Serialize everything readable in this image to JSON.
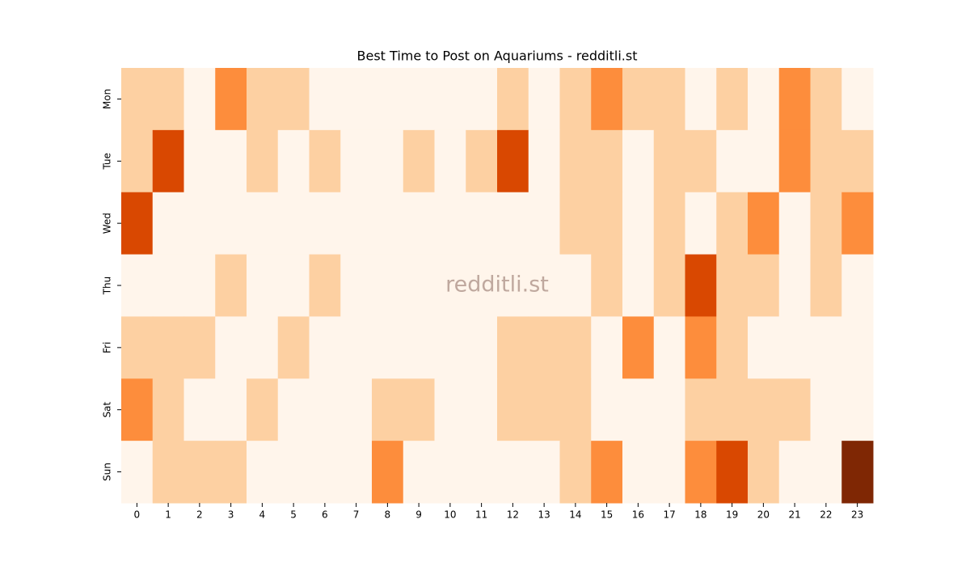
{
  "chart_data": {
    "type": "heatmap",
    "title": "Best Time to Post on Aquariums - redditli.st",
    "watermark": "redditli.st",
    "x": [
      0,
      1,
      2,
      3,
      4,
      5,
      6,
      7,
      8,
      9,
      10,
      11,
      12,
      13,
      14,
      15,
      16,
      17,
      18,
      19,
      20,
      21,
      22,
      23
    ],
    "y": [
      "Mon",
      "Tue",
      "Wed",
      "Thu",
      "Fri",
      "Sat",
      "Sun"
    ],
    "values": [
      [
        1,
        1,
        0,
        2,
        1,
        1,
        0,
        0,
        0,
        0,
        0,
        0,
        1,
        0,
        1,
        2,
        1,
        1,
        0,
        1,
        0,
        2,
        1,
        0
      ],
      [
        1,
        3,
        0,
        0,
        1,
        0,
        1,
        0,
        0,
        1,
        0,
        1,
        3,
        0,
        1,
        1,
        0,
        1,
        1,
        0,
        0,
        2,
        1,
        1
      ],
      [
        3,
        0,
        0,
        0,
        0,
        0,
        0,
        0,
        0,
        0,
        0,
        0,
        0,
        0,
        1,
        1,
        0,
        1,
        0,
        1,
        2,
        0,
        1,
        2
      ],
      [
        0,
        0,
        0,
        1,
        0,
        0,
        1,
        0,
        0,
        0,
        0,
        0,
        0,
        0,
        0,
        1,
        0,
        1,
        3,
        1,
        1,
        0,
        1,
        0
      ],
      [
        1,
        1,
        1,
        0,
        0,
        1,
        0,
        0,
        0,
        0,
        0,
        0,
        1,
        1,
        1,
        0,
        2,
        0,
        2,
        1,
        0,
        0,
        0,
        0
      ],
      [
        2,
        1,
        0,
        0,
        1,
        0,
        0,
        0,
        1,
        1,
        0,
        0,
        1,
        1,
        1,
        0,
        0,
        0,
        1,
        1,
        1,
        1,
        0,
        0
      ],
      [
        0,
        1,
        1,
        1,
        0,
        0,
        0,
        0,
        2,
        0,
        0,
        0,
        0,
        0,
        1,
        2,
        0,
        0,
        2,
        3,
        1,
        0,
        0,
        4
      ]
    ],
    "colors": [
      "#fff5eb",
      "#fdd0a2",
      "#fd8d3c",
      "#d94801",
      "#7f2704"
    ]
  }
}
